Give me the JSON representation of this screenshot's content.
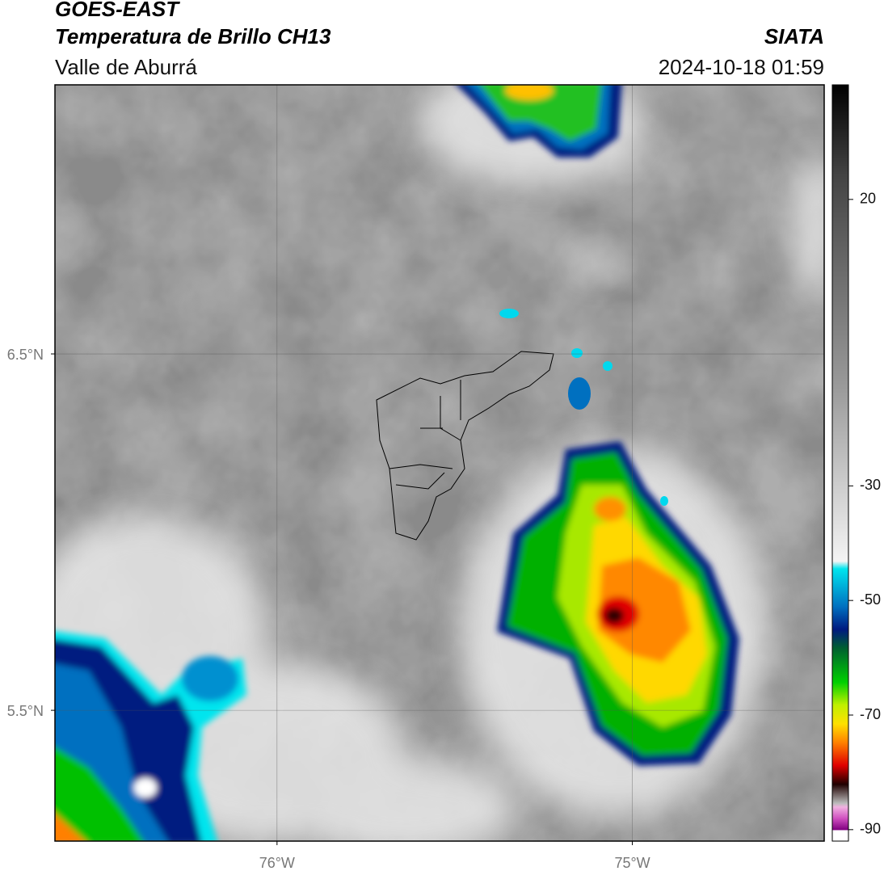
{
  "header": {
    "title": "GOES-EAST",
    "subtitle": "Temperatura de Brillo CH13",
    "region": "Valle de Aburrá",
    "source": "SIATA",
    "datetime": "2024-10-18 01:59"
  },
  "map": {
    "xlim": [
      -76.625,
      -74.46
    ],
    "ylim": [
      5.133,
      7.255
    ],
    "xticks": [
      {
        "value": -76,
        "label": "76°W"
      },
      {
        "value": -75,
        "label": "75°W"
      }
    ],
    "yticks": [
      {
        "value": 6.5,
        "label": "6.5°N"
      },
      {
        "value": 5.5,
        "label": "5.5°N"
      }
    ],
    "grid": true
  },
  "colorbar": {
    "lim": [
      -92,
      40
    ],
    "ticks": [
      20,
      -30,
      -50,
      -70,
      -90
    ]
  }
}
